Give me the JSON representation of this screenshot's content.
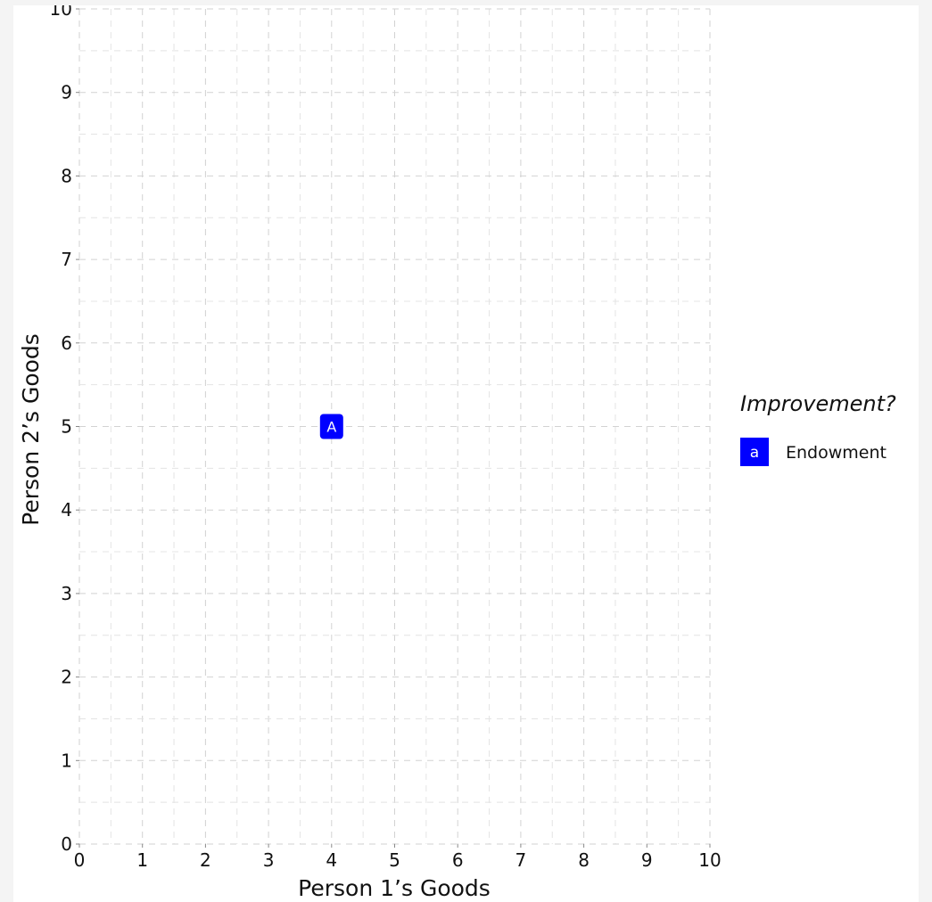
{
  "chart_data": {
    "type": "scatter",
    "xlabel": "Person 1’s Goods",
    "ylabel": "Person 2’s Goods",
    "xlim": [
      0,
      10
    ],
    "ylim": [
      0,
      10
    ],
    "x_ticks": [
      "0",
      "1",
      "2",
      "3",
      "4",
      "5",
      "6",
      "7",
      "8",
      "9",
      "10"
    ],
    "y_ticks": [
      "0",
      "1",
      "2",
      "3",
      "4",
      "5",
      "6",
      "7",
      "8",
      "9",
      "10"
    ],
    "grid": "dashed major and minor",
    "points": [
      {
        "x": 4,
        "y": 5,
        "label": "A",
        "group": "Endowment",
        "color": "#0000ff"
      }
    ],
    "legend": {
      "title": "Improvement?",
      "position": "right",
      "items": [
        {
          "key": "a",
          "label": "Endowment",
          "color": "#0000ff"
        }
      ]
    }
  }
}
